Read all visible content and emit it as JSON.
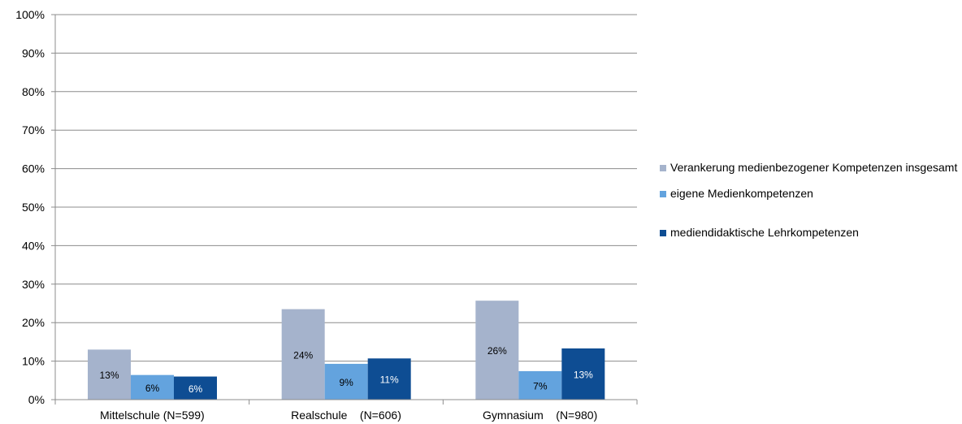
{
  "chart_data": {
    "type": "bar",
    "categories": [
      "Mittelschule (N=599)",
      "Realschule    (N=606)",
      "Gymnasium    (N=980)"
    ],
    "series": [
      {
        "name": "Verankerung medienbezogener Kompetenzen insgesamt",
        "color": "#a5b3cc",
        "values": [
          13,
          23.5,
          25.7
        ],
        "labels": [
          "13%",
          "24%",
          "26%"
        ]
      },
      {
        "name": "eigene Medienkompetenzen",
        "color": "#63a3de",
        "values": [
          6.4,
          9.3,
          7.4
        ],
        "labels": [
          "6%",
          "9%",
          "7%"
        ]
      },
      {
        "name": "mediendidaktische Lehrkompetenzen",
        "color": "#0e4d93",
        "values": [
          6,
          10.7,
          13.3
        ],
        "labels": [
          "6%",
          "11%",
          "13%"
        ]
      }
    ],
    "y_ticks": [
      "0%",
      "10%",
      "20%",
      "30%",
      "40%",
      "50%",
      "60%",
      "70%",
      "80%",
      "90%",
      "100%"
    ],
    "ylim": [
      0,
      100
    ],
    "grid": true,
    "legend_position": "right",
    "title": "",
    "xlabel": "",
    "ylabel": ""
  }
}
